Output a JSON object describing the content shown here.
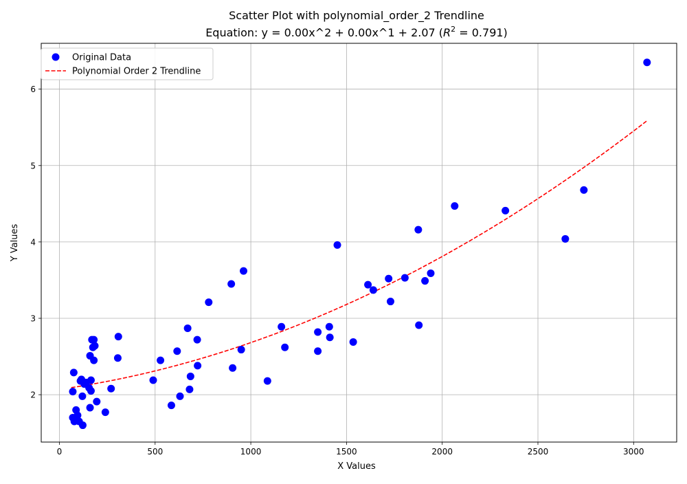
{
  "chart_data": {
    "type": "scatter",
    "title": "Scatter Plot with polynomial_order_2 Trendline",
    "subtitle_prefix": "Equation: y = 0.00x^2 + 0.00x^1 + 2.07 (",
    "subtitle_r2": "R",
    "subtitle_r2_sup": "2",
    "subtitle_suffix": " = 0.791)",
    "xlabel": "X Values",
    "ylabel": "Y Values",
    "xlim": [
      -95,
      3225
    ],
    "ylim": [
      1.38,
      6.6
    ],
    "xticks": [
      0,
      500,
      1000,
      1500,
      2000,
      2500,
      3000
    ],
    "yticks": [
      2,
      3,
      4,
      5,
      6
    ],
    "grid": true,
    "legend_position": "top-left",
    "legend": [
      {
        "label": "Original Data",
        "kind": "marker",
        "color": "#0000ff"
      },
      {
        "label": "Polynomial Order 2 Trendline",
        "kind": "dashed-line",
        "color": "#ff0000"
      }
    ],
    "series": [
      {
        "name": "Original Data",
        "color": "#0000ff",
        "points": [
          [
            70,
            1.7
          ],
          [
            78,
            1.65
          ],
          [
            87,
            1.8
          ],
          [
            95,
            1.73
          ],
          [
            103,
            1.65
          ],
          [
            122,
            1.6
          ],
          [
            70,
            2.04
          ],
          [
            75,
            2.29
          ],
          [
            110,
            2.18
          ],
          [
            115,
            2.2
          ],
          [
            120,
            1.98
          ],
          [
            130,
            2.14
          ],
          [
            140,
            2.16
          ],
          [
            155,
            2.09
          ],
          [
            165,
            2.05
          ],
          [
            160,
            1.83
          ],
          [
            165,
            2.19
          ],
          [
            160,
            2.51
          ],
          [
            170,
            2.72
          ],
          [
            175,
            2.62
          ],
          [
            180,
            2.72
          ],
          [
            185,
            2.64
          ],
          [
            180,
            2.45
          ],
          [
            195,
            1.91
          ],
          [
            240,
            1.77
          ],
          [
            270,
            2.08
          ],
          [
            305,
            2.48
          ],
          [
            308,
            2.76
          ],
          [
            490,
            2.19
          ],
          [
            528,
            2.45
          ],
          [
            585,
            1.86
          ],
          [
            615,
            2.57
          ],
          [
            630,
            1.98
          ],
          [
            670,
            2.87
          ],
          [
            680,
            2.07
          ],
          [
            685,
            2.24
          ],
          [
            720,
            2.72
          ],
          [
            722,
            2.38
          ],
          [
            780,
            3.21
          ],
          [
            898,
            3.45
          ],
          [
            905,
            2.35
          ],
          [
            950,
            2.59
          ],
          [
            962,
            3.62
          ],
          [
            1087,
            2.18
          ],
          [
            1160,
            2.89
          ],
          [
            1178,
            2.62
          ],
          [
            1350,
            2.82
          ],
          [
            1350,
            2.57
          ],
          [
            1410,
            2.89
          ],
          [
            1413,
            2.75
          ],
          [
            1452,
            3.96
          ],
          [
            1535,
            2.69
          ],
          [
            1612,
            3.44
          ],
          [
            1640,
            3.37
          ],
          [
            1720,
            3.52
          ],
          [
            1730,
            3.22
          ],
          [
            1805,
            3.53
          ],
          [
            1875,
            4.16
          ],
          [
            1878,
            2.91
          ],
          [
            1910,
            3.49
          ],
          [
            1940,
            3.59
          ],
          [
            2065,
            4.47
          ],
          [
            2330,
            4.41
          ],
          [
            2643,
            4.04
          ],
          [
            2740,
            4.68
          ],
          [
            3070,
            6.35
          ]
        ]
      },
      {
        "name": "Polynomial Order 2 Trendline",
        "color": "#ff0000",
        "style": "dashed",
        "x_range": [
          62,
          3070
        ],
        "curve_points": [
          [
            62,
            2.09
          ],
          [
            500,
            2.31
          ],
          [
            1000,
            2.7
          ],
          [
            1500,
            3.17
          ],
          [
            2000,
            3.79
          ],
          [
            2500,
            4.59
          ],
          [
            3070,
            5.58
          ]
        ]
      }
    ]
  }
}
